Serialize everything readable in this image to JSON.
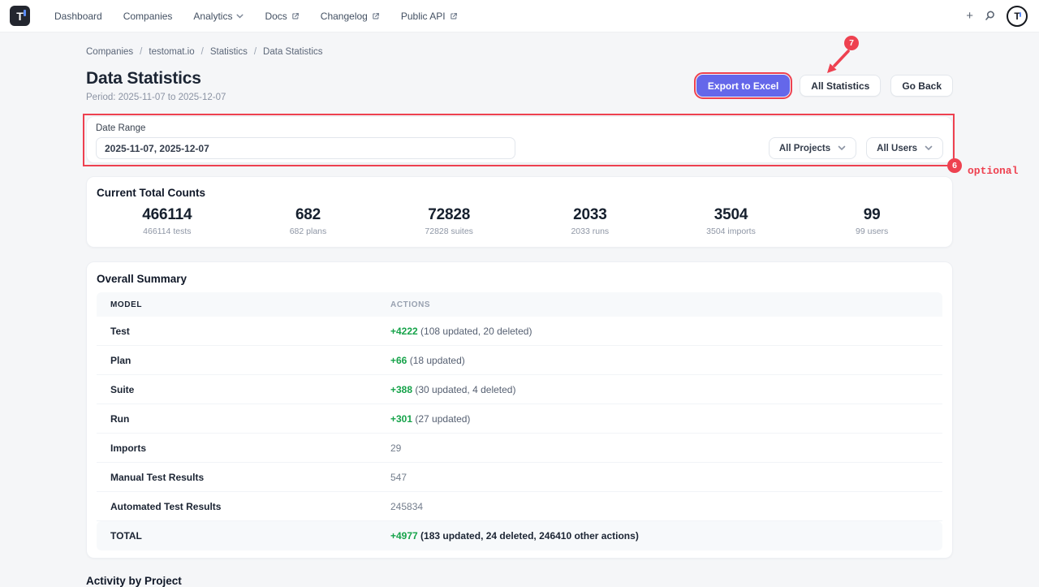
{
  "nav": {
    "logo_text": "T",
    "items": [
      {
        "label": "Dashboard"
      },
      {
        "label": "Companies"
      },
      {
        "label": "Analytics",
        "chevron": true
      },
      {
        "label": "Docs",
        "external": true
      },
      {
        "label": "Changelog",
        "external": true
      },
      {
        "label": "Public API",
        "external": true
      }
    ],
    "plus_icon": "+",
    "avatar_text": "T"
  },
  "breadcrumb": {
    "separator": "/",
    "items": [
      "Companies",
      "testomat.io",
      "Statistics",
      "Data Statistics"
    ]
  },
  "header": {
    "title": "Data Statistics",
    "period": "Period: 2025-11-07 to 2025-12-07",
    "export_button": "Export to Excel",
    "all_statistics_button": "All Statistics",
    "go_back_button": "Go Back"
  },
  "filters": {
    "date_range_label": "Date Range",
    "date_range_value": "2025-11-07, 2025-12-07",
    "projects_dropdown": "All Projects",
    "users_dropdown": "All Users"
  },
  "annotations": {
    "badge7": "7",
    "badge6": "6",
    "optional": "optional",
    "red": "#ee4150"
  },
  "colors": {
    "accent_indigo": "#6467ea",
    "positive_green": "#16a34a"
  },
  "totals": {
    "title": "Current Total Counts",
    "stats": [
      {
        "value": "466114",
        "label": "466114 tests"
      },
      {
        "value": "682",
        "label": "682 plans"
      },
      {
        "value": "72828",
        "label": "72828 suites"
      },
      {
        "value": "2033",
        "label": "2033 runs"
      },
      {
        "value": "3504",
        "label": "3504 imports"
      },
      {
        "value": "99",
        "label": "99 users"
      }
    ]
  },
  "summary": {
    "title": "Overall Summary",
    "columns": [
      "MODEL",
      "ACTIONS"
    ],
    "rows": [
      {
        "model": "Test",
        "added": "+4222",
        "details": "(108 updated, 20 deleted)"
      },
      {
        "model": "Plan",
        "added": "+66",
        "details": "(18 updated)"
      },
      {
        "model": "Suite",
        "added": "+388",
        "details": "(30 updated, 4 deleted)"
      },
      {
        "model": "Run",
        "added": "+301",
        "details": "(27 updated)"
      },
      {
        "model": "Imports",
        "value": "29"
      },
      {
        "model": "Manual Test Results",
        "value": "547"
      },
      {
        "model": "Automated Test Results",
        "value": "245834"
      }
    ],
    "total_row": {
      "model": "TOTAL",
      "added": "+4977",
      "details": "(183 updated, 24 deleted, 246410 other actions)"
    }
  },
  "activity": {
    "title": "Activity by Project"
  }
}
